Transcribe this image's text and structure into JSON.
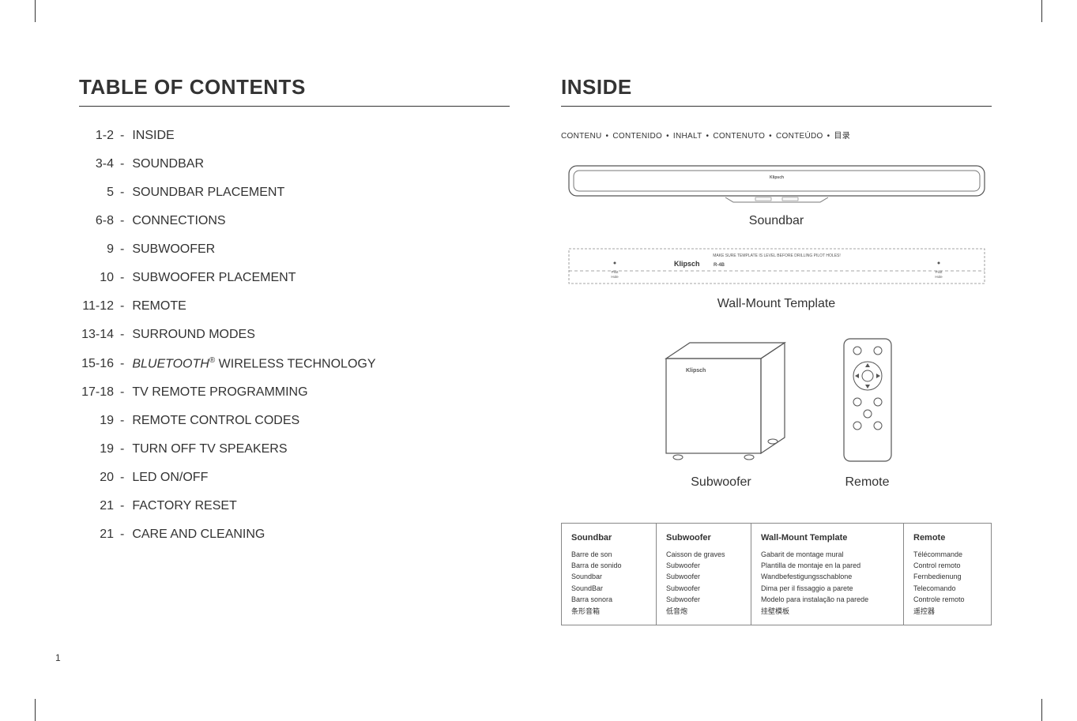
{
  "left": {
    "title": "TABLE OF CONTENTS",
    "toc": [
      {
        "pages": "1-2",
        "title": "INSIDE"
      },
      {
        "pages": "3-4",
        "title": "SOUNDBAR"
      },
      {
        "pages": "5",
        "title": "SOUNDBAR PLACEMENT"
      },
      {
        "pages": "6-8",
        "title": "CONNECTIONS"
      },
      {
        "pages": "9",
        "title": "SUBWOOFER"
      },
      {
        "pages": "10",
        "title": "SUBWOOFER PLACEMENT"
      },
      {
        "pages": "11-12",
        "title": "REMOTE"
      },
      {
        "pages": "13-14",
        "title": "SURROUND MODES"
      },
      {
        "pages": "15-16",
        "title_italic": "BLUETOOTH",
        "title_reg": "®",
        "title_after": " WIRELESS TECHNOLOGY"
      },
      {
        "pages": "17-18",
        "title": "TV REMOTE PROGRAMMING"
      },
      {
        "pages": "19",
        "title": "REMOTE CONTROL CODES"
      },
      {
        "pages": "19",
        "title": "TURN OFF TV SPEAKERS"
      },
      {
        "pages": "20",
        "title": "LED ON/OFF"
      },
      {
        "pages": "21",
        "title": "FACTORY RESET"
      },
      {
        "pages": "21",
        "title": "CARE AND CLEANING"
      }
    ],
    "page_number": "1"
  },
  "right": {
    "title": "INSIDE",
    "translations": [
      "CONTENU",
      "CONTENIDO",
      "INHALT",
      "CONTENUTO",
      "CONTEÚDO",
      "目录"
    ],
    "soundbar_label": "Soundbar",
    "soundbar_brand": "Klipsch",
    "template_label": "Wall-Mount Template",
    "template_brand": "Klipsch",
    "template_model": "R-4B",
    "template_note": "MAKE SURE TEMPLATE IS LEVEL BEFORE DRILLING PILOT HOLES!",
    "template_pilot": "Pilot\nHole",
    "subwoofer_label": "Subwoofer",
    "subwoofer_brand": "Klipsch",
    "remote_label": "Remote",
    "table": {
      "soundbar": {
        "hd": "Soundbar",
        "rows": [
          "Barre de son",
          "Barra de sonido",
          "Soundbar",
          "SoundBar",
          "Barra sonora",
          "条形音箱"
        ]
      },
      "subwoofer": {
        "hd": "Subwoofer",
        "rows": [
          "Caisson de graves",
          "Subwoofer",
          "Subwoofer",
          "Subwoofer",
          "Subwoofer",
          "低音炮"
        ]
      },
      "template": {
        "hd": "Wall-Mount Template",
        "rows": [
          "Gabarit de montage mural",
          "Plantilla de montaje en la pared",
          "Wandbefestigungsschablone",
          "Dima per il fissaggio a parete",
          "Modelo para instalação na parede",
          "挂壁模板"
        ]
      },
      "remote": {
        "hd": "Remote",
        "rows": [
          "Télécommande",
          "Control remoto",
          "Fernbedienung",
          "Telecomando",
          "Controle remoto",
          "遥控器"
        ]
      }
    }
  }
}
